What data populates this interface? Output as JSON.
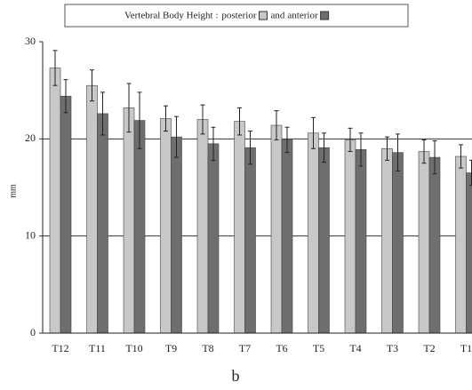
{
  "chart_data": {
    "type": "bar",
    "title": "Vertebral Body Height :",
    "legend_joiner": "and",
    "caption": "b",
    "y_label": "mm",
    "categories": [
      "T12",
      "T11",
      "T10",
      "T9",
      "T8",
      "T7",
      "T6",
      "T5",
      "T4",
      "T3",
      "T2",
      "T1"
    ],
    "series": [
      {
        "name": "posterior",
        "color": "#c8c8c8",
        "values": [
          27.3,
          25.5,
          23.2,
          22.1,
          22.0,
          21.8,
          21.4,
          20.6,
          19.9,
          19.0,
          18.7,
          18.2
        ],
        "errors": [
          1.8,
          1.6,
          2.5,
          1.3,
          1.5,
          1.4,
          1.5,
          1.6,
          1.2,
          1.2,
          1.2,
          1.2
        ]
      },
      {
        "name": "anterior",
        "color": "#6e6e6e",
        "values": [
          24.4,
          22.6,
          21.9,
          20.2,
          19.5,
          19.1,
          19.9,
          19.1,
          18.9,
          18.6,
          18.1,
          16.5
        ],
        "errors": [
          1.7,
          2.2,
          2.9,
          2.1,
          1.7,
          1.7,
          1.3,
          1.5,
          1.7,
          1.9,
          1.7,
          1.3
        ]
      }
    ],
    "ylim": [
      0,
      30
    ],
    "yticks": [
      0,
      10,
      20,
      30
    ],
    "grid": true
  }
}
